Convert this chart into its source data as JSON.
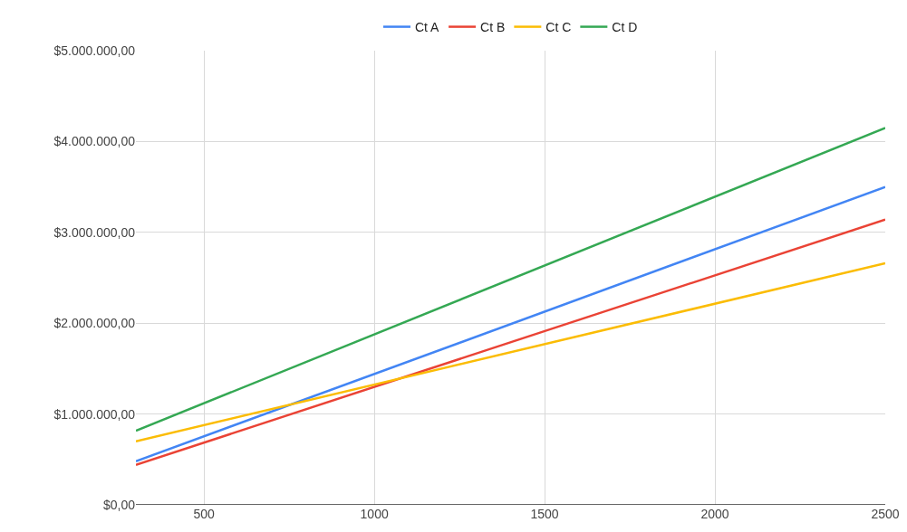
{
  "chart_data": {
    "type": "line",
    "x": [
      300,
      2500
    ],
    "series": [
      {
        "name": "Ct A",
        "color": "#4285f4",
        "values": [
          480000,
          3500000
        ]
      },
      {
        "name": "Ct B",
        "color": "#ea4335",
        "values": [
          440000,
          3140000
        ]
      },
      {
        "name": "Ct C",
        "color": "#fbbc04",
        "values": [
          700000,
          2660000
        ]
      },
      {
        "name": "Ct D",
        "color": "#34a853",
        "values": [
          816000,
          4150000
        ]
      }
    ],
    "xlim": [
      300,
      2500
    ],
    "xticks": [
      500,
      1000,
      1500,
      2000,
      2500
    ],
    "ylim": [
      0,
      5000000
    ],
    "yticks": [
      {
        "value": 0,
        "label": "$0,00"
      },
      {
        "value": 1000000,
        "label": "$1.000.000,00"
      },
      {
        "value": 2000000,
        "label": "$2.000.000,00"
      },
      {
        "value": 3000000,
        "label": "$3.000.000,00"
      },
      {
        "value": 4000000,
        "label": "$4.000.000,00"
      },
      {
        "value": 5000000,
        "label": "$5.000.000,00"
      }
    ],
    "grid": true,
    "legend": "top",
    "marker": "none",
    "line_style": "solid"
  }
}
